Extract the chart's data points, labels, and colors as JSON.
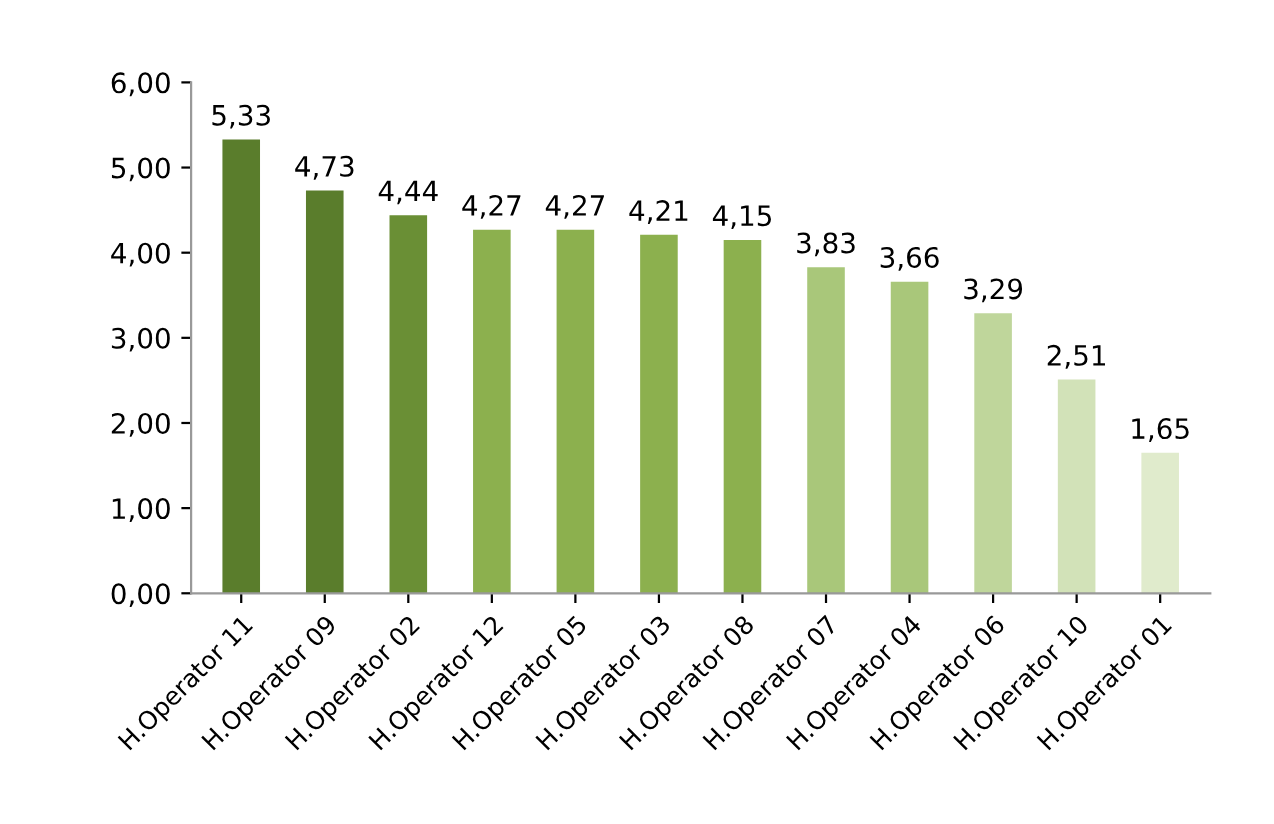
{
  "chart_data": {
    "type": "bar",
    "categories": [
      "H.Operator 11",
      "H.Operator 09",
      "H.Operator 02",
      "H.Operator 12",
      "H.Operator 05",
      "H.Operator 03",
      "H.Operator 08",
      "H.Operator 07",
      "H.Operator 04",
      "H.Operator 06",
      "H.Operator 10",
      "H.Operator 01"
    ],
    "values": [
      5.33,
      4.73,
      4.44,
      4.27,
      4.27,
      4.21,
      4.15,
      3.83,
      3.66,
      3.29,
      2.51,
      1.65
    ],
    "value_labels": [
      "5,33",
      "4,73",
      "4,44",
      "4,27",
      "4,27",
      "4,21",
      "4,15",
      "3,83",
      "3,66",
      "3,29",
      "2,51",
      "1,65"
    ],
    "colors": [
      "#5a7d2c",
      "#5a7d2c",
      "#6a8f35",
      "#8cb04e",
      "#8cb04e",
      "#8cb04e",
      "#8cb04e",
      "#a9c77a",
      "#a9c77a",
      "#bfd69b",
      "#d2e2b8",
      "#e0ebcc"
    ],
    "ylim": [
      0,
      6
    ],
    "yticks": [
      {
        "value": 0,
        "label": "0,00"
      },
      {
        "value": 1,
        "label": "1,00"
      },
      {
        "value": 2,
        "label": "2,00"
      },
      {
        "value": 3,
        "label": "3,00"
      },
      {
        "value": 4,
        "label": "4,00"
      },
      {
        "value": 5,
        "label": "5,00"
      },
      {
        "value": 6,
        "label": "6,00"
      }
    ]
  }
}
